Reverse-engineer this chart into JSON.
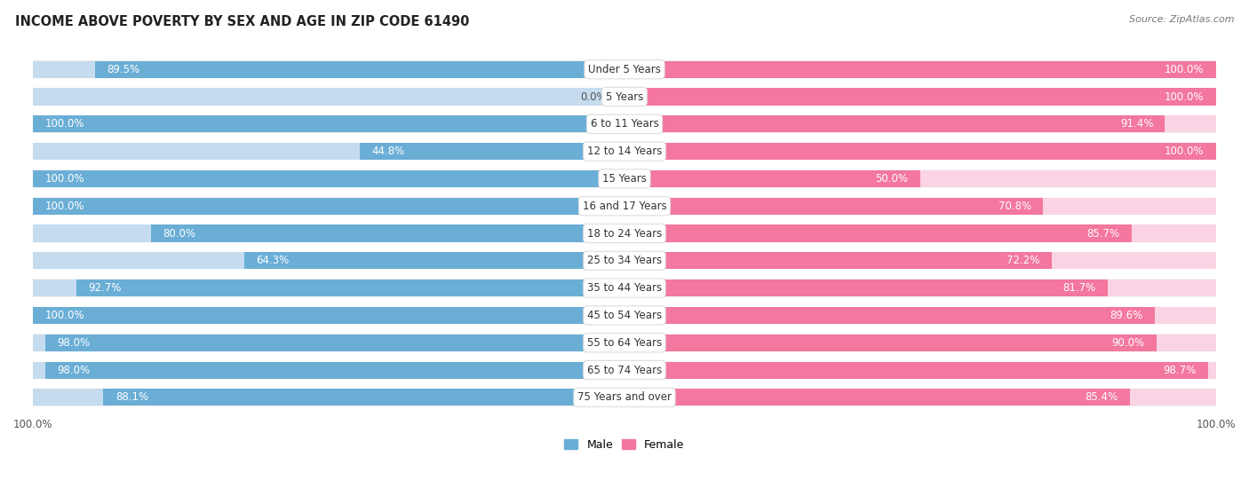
{
  "title": "INCOME ABOVE POVERTY BY SEX AND AGE IN ZIP CODE 61490",
  "source": "Source: ZipAtlas.com",
  "categories": [
    "Under 5 Years",
    "5 Years",
    "6 to 11 Years",
    "12 to 14 Years",
    "15 Years",
    "16 and 17 Years",
    "18 to 24 Years",
    "25 to 34 Years",
    "35 to 44 Years",
    "45 to 54 Years",
    "55 to 64 Years",
    "65 to 74 Years",
    "75 Years and over"
  ],
  "male_values": [
    89.5,
    0.0,
    100.0,
    44.8,
    100.0,
    100.0,
    80.0,
    64.3,
    92.7,
    100.0,
    98.0,
    98.0,
    88.1
  ],
  "female_values": [
    100.0,
    100.0,
    91.4,
    100.0,
    50.0,
    70.8,
    85.7,
    72.2,
    81.7,
    89.6,
    90.0,
    98.7,
    85.4
  ],
  "male_color": "#6aaed6",
  "female_color": "#f3779e",
  "male_light_color": "#c5dcef",
  "female_light_color": "#fad4e4",
  "row_bg_odd": "#efefef",
  "row_bg_even": "#fafafa",
  "bar_height": 0.62,
  "title_fontsize": 10.5,
  "label_fontsize": 8.5,
  "tick_fontsize": 8.5,
  "source_fontsize": 8
}
